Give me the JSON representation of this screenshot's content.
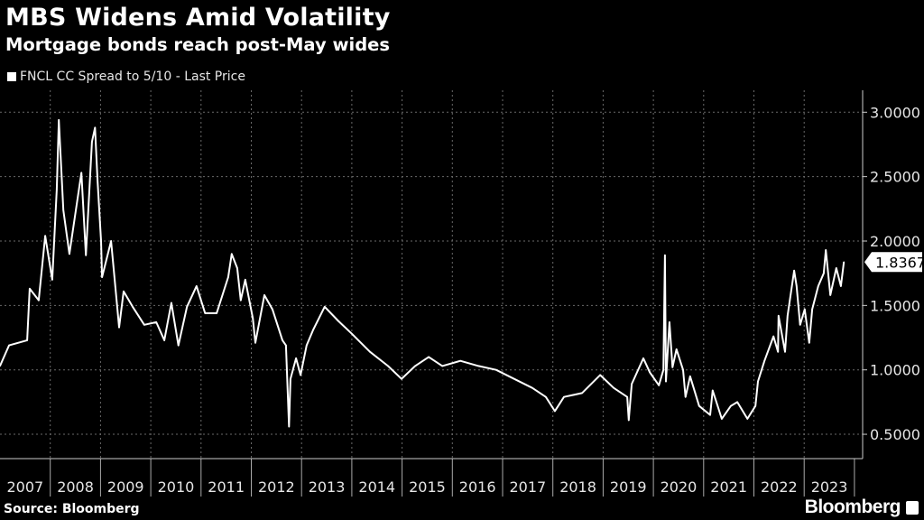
{
  "chart_data": {
    "type": "line",
    "title": "MBS Widens Amid Volatility",
    "subtitle": "Mortgage bonds reach post-May wides",
    "legend": [
      "FNCL CC Spread to 5/10 - Last Price"
    ],
    "legend_position": "top-left",
    "xlabel": "",
    "ylabel": "",
    "x_tick_labels": [
      "2007",
      "2008",
      "2009",
      "2010",
      "2011",
      "2012",
      "2013",
      "2014",
      "2015",
      "2016",
      "2017",
      "2018",
      "2019",
      "2020",
      "2021",
      "2022",
      "2023"
    ],
    "y_tick_labels": [
      "3.0000",
      "2.5000",
      "2.0000",
      "1.5000",
      "1.0000",
      "0.5000"
    ],
    "y_ticks": [
      3.0,
      2.5,
      2.0,
      1.5,
      1.0,
      0.5
    ],
    "xlim": [
      2007.0,
      2024.15
    ],
    "ylim": [
      0.19,
      3.24
    ],
    "grid": true,
    "y_axis_side": "right",
    "last_value_label": "1.8367",
    "series": [
      {
        "name": "FNCL CC Spread to 5/10 - Last Price",
        "color": "#ffffff",
        "x": [
          2007.0,
          2007.18,
          2007.54,
          2007.59,
          2007.77,
          2007.9,
          2008.04,
          2008.13,
          2008.17,
          2008.26,
          2008.38,
          2008.62,
          2008.71,
          2008.83,
          2008.89,
          2008.94,
          2009.01,
          2009.03,
          2009.21,
          2009.37,
          2009.46,
          2009.64,
          2009.87,
          2010.11,
          2010.27,
          2010.41,
          2010.55,
          2010.72,
          2010.91,
          2011.08,
          2011.31,
          2011.54,
          2011.61,
          2011.72,
          2011.79,
          2011.88,
          2012.03,
          2012.08,
          2012.26,
          2012.42,
          2012.62,
          2012.69,
          2012.75,
          2012.78,
          2012.89,
          2012.98,
          2013.1,
          2013.23,
          2013.46,
          2013.73,
          2014.0,
          2014.36,
          2014.72,
          2014.99,
          2015.26,
          2015.53,
          2015.8,
          2016.16,
          2016.52,
          2016.87,
          2017.23,
          2017.59,
          2017.86,
          2018.04,
          2018.22,
          2018.58,
          2018.94,
          2019.21,
          2019.48,
          2019.51,
          2019.57,
          2019.8,
          2019.93,
          2020.11,
          2020.2,
          2020.23,
          2020.25,
          2020.32,
          2020.38,
          2020.46,
          2020.59,
          2020.64,
          2020.73,
          2020.91,
          2021.13,
          2021.18,
          2021.36,
          2021.54,
          2021.67,
          2021.87,
          2022.03,
          2022.08,
          2022.21,
          2022.39,
          2022.48,
          2022.49,
          2022.62,
          2022.67,
          2022.8,
          2022.85,
          2022.92,
          2023.01,
          2023.1,
          2023.16,
          2023.28,
          2023.39,
          2023.43,
          2023.52,
          2023.64,
          2023.73,
          2023.79
        ],
        "values": [
          1.03,
          1.19,
          1.23,
          1.63,
          1.54,
          2.04,
          1.7,
          2.4,
          2.94,
          2.24,
          1.9,
          2.53,
          1.89,
          2.77,
          2.88,
          2.47,
          2.0,
          1.72,
          2.0,
          1.33,
          1.61,
          1.49,
          1.35,
          1.37,
          1.23,
          1.52,
          1.19,
          1.49,
          1.65,
          1.44,
          1.44,
          1.72,
          1.9,
          1.79,
          1.54,
          1.7,
          1.4,
          1.21,
          1.58,
          1.47,
          1.23,
          1.19,
          0.56,
          0.93,
          1.09,
          0.96,
          1.19,
          1.31,
          1.49,
          1.38,
          1.28,
          1.14,
          1.03,
          0.93,
          1.03,
          1.1,
          1.03,
          1.07,
          1.03,
          1.0,
          0.93,
          0.86,
          0.79,
          0.68,
          0.79,
          0.82,
          0.96,
          0.86,
          0.79,
          0.61,
          0.89,
          1.09,
          0.98,
          0.88,
          1.0,
          1.89,
          0.91,
          1.37,
          1.02,
          1.16,
          1.0,
          0.79,
          0.95,
          0.72,
          0.65,
          0.84,
          0.62,
          0.72,
          0.75,
          0.62,
          0.72,
          0.91,
          1.07,
          1.26,
          1.14,
          1.42,
          1.14,
          1.42,
          1.77,
          1.65,
          1.35,
          1.47,
          1.21,
          1.47,
          1.65,
          1.75,
          1.93,
          1.58,
          1.79,
          1.65,
          1.8367
        ]
      }
    ]
  },
  "source": "Source: Bloomberg",
  "brand": "Bloomberg"
}
